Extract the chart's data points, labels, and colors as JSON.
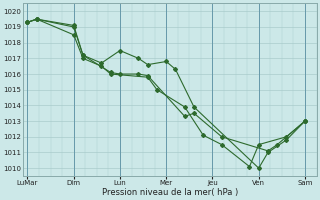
{
  "background_color": "#cce8e8",
  "grid_color": "#aacccc",
  "line_color": "#2d6a2d",
  "xlabel": "Pression niveau de la mer( hPa )",
  "ylim": [
    1009.5,
    1020.5
  ],
  "yticks": [
    1010,
    1011,
    1012,
    1013,
    1014,
    1015,
    1016,
    1017,
    1018,
    1019,
    1020
  ],
  "xtick_labels": [
    "LuMar",
    "Dim",
    "Lun",
    "Mer",
    "Jeu",
    "Ven",
    "Sam"
  ],
  "xtick_positions": [
    0,
    2,
    4,
    6,
    8,
    10,
    12
  ],
  "series_x": [
    [
      0,
      0.4,
      2.0,
      2.4,
      3.6,
      4.0,
      4.8,
      5.2,
      6.8,
      7.2,
      8.4,
      10.4,
      10.8,
      12.0
    ],
    [
      0,
      0.4,
      2.0,
      2.4,
      3.2,
      4.0,
      4.8,
      5.2,
      6.0,
      6.4,
      7.2,
      10.0,
      10.4,
      11.2,
      12.0
    ],
    [
      0,
      0.4,
      2.0,
      2.4,
      3.2,
      3.6,
      5.2,
      5.6,
      6.8,
      7.6,
      8.4,
      9.6,
      10.0,
      11.2,
      12.0
    ]
  ],
  "series_y": [
    [
      1019.3,
      1019.5,
      1019.1,
      1017.2,
      1016.1,
      1016.0,
      1016.0,
      1015.9,
      1013.3,
      1013.5,
      1012.0,
      1011.1,
      1011.5,
      1013.0
    ],
    [
      1019.3,
      1019.5,
      1019.0,
      1017.2,
      1016.7,
      1017.5,
      1017.0,
      1016.6,
      1016.8,
      1016.3,
      1013.9,
      1010.0,
      1011.0,
      1011.8,
      1013.0
    ],
    [
      1019.3,
      1019.5,
      1018.5,
      1017.0,
      1016.5,
      1016.0,
      1015.8,
      1015.0,
      1013.9,
      1012.1,
      1011.5,
      1010.1,
      1011.5,
      1012.0,
      1013.0
    ]
  ]
}
